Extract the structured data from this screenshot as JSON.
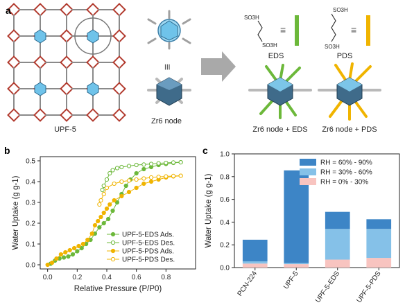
{
  "panel_a": {
    "letter": "a",
    "labels": {
      "upf5": "UPF-5",
      "zr6_node": "Zr6 node",
      "eds": "EDS",
      "pds": "PDS",
      "zr6_eds": "Zr6 node + EDS",
      "zr6_pds": "Zr6 node + PDS",
      "equiv": "≡",
      "so3h": "SO3H"
    },
    "colors": {
      "eds": "#6cb83a",
      "pds": "#f0b400",
      "node": "#3f6b8a",
      "linker": "#b23a2e"
    }
  },
  "panel_b": {
    "letter": "b"
  },
  "panel_c": {
    "letter": "c"
  },
  "chart_data": [
    {
      "type": "scatter",
      "xlabel": "Relative Pressure (P/P0)",
      "ylabel": "Water Uptake (g g-1)",
      "xlim": [
        -0.05,
        1.0
      ],
      "ylim": [
        -0.02,
        0.52
      ],
      "xticks": [
        "0.0",
        "0.2",
        "0.4",
        "0.6",
        "0.8"
      ],
      "yticks": [
        "0.0",
        "0.1",
        "0.2",
        "0.3",
        "0.4",
        "0.5"
      ],
      "legend_position": "lower-right",
      "series": [
        {
          "name": "UPF-5-EDS Ads.",
          "color": "#6cb83a",
          "marker": "filled",
          "x": [
            0.02,
            0.05,
            0.08,
            0.11,
            0.14,
            0.17,
            0.2,
            0.23,
            0.26,
            0.29,
            0.32,
            0.35,
            0.38,
            0.41,
            0.44,
            0.47,
            0.5,
            0.53,
            0.56,
            0.6,
            0.65,
            0.7,
            0.75,
            0.8,
            0.85,
            0.9
          ],
          "y": [
            0.005,
            0.02,
            0.03,
            0.035,
            0.04,
            0.05,
            0.065,
            0.08,
            0.1,
            0.12,
            0.15,
            0.18,
            0.2,
            0.22,
            0.26,
            0.3,
            0.34,
            0.38,
            0.41,
            0.44,
            0.46,
            0.47,
            0.48,
            0.485,
            0.49,
            0.493
          ]
        },
        {
          "name": "UPF-5-EDS Des.",
          "color": "#6cb83a",
          "marker": "open",
          "x": [
            0.9,
            0.85,
            0.8,
            0.75,
            0.7,
            0.65,
            0.6,
            0.55,
            0.5,
            0.47,
            0.44,
            0.42,
            0.4,
            0.38,
            0.37
          ],
          "y": [
            0.493,
            0.492,
            0.49,
            0.488,
            0.485,
            0.482,
            0.48,
            0.475,
            0.47,
            0.465,
            0.455,
            0.44,
            0.41,
            0.38,
            0.36
          ]
        },
        {
          "name": "UPF-5-PDS Ads.",
          "color": "#f0b400",
          "marker": "filled",
          "x": [
            0.0,
            0.03,
            0.06,
            0.09,
            0.12,
            0.15,
            0.18,
            0.21,
            0.24,
            0.27,
            0.3,
            0.32,
            0.34,
            0.36,
            0.38,
            0.4,
            0.42,
            0.45,
            0.5,
            0.55,
            0.6,
            0.65,
            0.7,
            0.75,
            0.8,
            0.85,
            0.9
          ],
          "y": [
            0.0,
            0.01,
            0.03,
            0.05,
            0.06,
            0.07,
            0.08,
            0.09,
            0.1,
            0.12,
            0.15,
            0.19,
            0.21,
            0.23,
            0.25,
            0.27,
            0.29,
            0.31,
            0.33,
            0.35,
            0.37,
            0.39,
            0.4,
            0.41,
            0.42,
            0.425,
            0.428
          ]
        },
        {
          "name": "UPF-5-PDS Des.",
          "color": "#f0b400",
          "marker": "open",
          "x": [
            0.9,
            0.85,
            0.8,
            0.75,
            0.7,
            0.65,
            0.6,
            0.55,
            0.5,
            0.45,
            0.4,
            0.38,
            0.36,
            0.35
          ],
          "y": [
            0.428,
            0.427,
            0.425,
            0.423,
            0.42,
            0.415,
            0.41,
            0.405,
            0.4,
            0.39,
            0.37,
            0.34,
            0.31,
            0.29
          ]
        }
      ]
    },
    {
      "type": "bar",
      "ylabel": "Water Uptake (g g-1)",
      "ylim": [
        0,
        1.0
      ],
      "yticks": [
        "0.0",
        "0.2",
        "0.4",
        "0.6",
        "0.8",
        "1.0"
      ],
      "categories": [
        "PCN-224",
        "UPF-5",
        "UPF-5-EDS",
        "UPF-5-PDS"
      ],
      "legend_position": "top-right",
      "stacked": true,
      "series": [
        {
          "name": "RH =  0% - 30%",
          "color": "#f8c4c0",
          "values": [
            0.035,
            0.03,
            0.07,
            0.085
          ]
        },
        {
          "name": "RH = 30% - 60%",
          "color": "#85c1e8",
          "values": [
            0.02,
            0.01,
            0.27,
            0.255
          ]
        },
        {
          "name": "RH = 60% - 90%",
          "color": "#3d85c6",
          "values": [
            0.19,
            0.815,
            0.15,
            0.085
          ]
        }
      ]
    }
  ]
}
